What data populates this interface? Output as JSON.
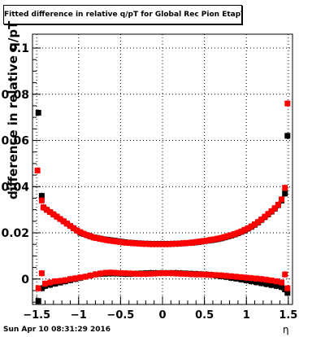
{
  "chart_data": {
    "type": "scatter",
    "title": "Fitted difference in relative q/pT for Global Rec Pion EtapT",
    "xlabel": "η",
    "ylabel": "difference in relative q/pT",
    "footer": "Sun Apr 10 08:31:29 2016",
    "xlim": [
      -1.55,
      1.55
    ],
    "ylim": [
      -0.011,
      0.106
    ],
    "x_ticks": [
      -1.5,
      -1,
      -0.5,
      0,
      0.5,
      1,
      1.5
    ],
    "x_tick_labels": [
      "−1.5",
      "−1",
      "−0.5",
      "0",
      "0.5",
      "1",
      "1.5"
    ],
    "y_ticks": [
      0,
      0.02,
      0.04,
      0.06,
      0.08,
      0.1
    ],
    "y_tick_labels": [
      "0",
      "0.02",
      "0.04",
      "0.06",
      "0.08",
      "0.1"
    ],
    "grid": true,
    "series": [
      {
        "color": "#000000",
        "values": [
          [
            -1.48,
            0.072
          ],
          [
            -1.44,
            0.036
          ],
          [
            -1.42,
            0.031
          ],
          [
            -1.38,
            0.03
          ],
          [
            -1.34,
            0.029
          ],
          [
            -1.3,
            0.028
          ],
          [
            -1.26,
            0.027
          ],
          [
            -1.22,
            0.026
          ],
          [
            -1.18,
            0.025
          ],
          [
            -1.14,
            0.024
          ],
          [
            -1.1,
            0.023
          ],
          [
            -1.06,
            0.022
          ],
          [
            -1.02,
            0.021
          ],
          [
            -0.98,
            0.02
          ],
          [
            -0.94,
            0.0195
          ],
          [
            -0.9,
            0.019
          ],
          [
            -0.86,
            0.0185
          ],
          [
            -0.82,
            0.018
          ],
          [
            -0.78,
            0.0178
          ],
          [
            -0.74,
            0.0175
          ],
          [
            -0.7,
            0.0172
          ],
          [
            -0.66,
            0.017
          ],
          [
            -0.62,
            0.0168
          ],
          [
            -0.58,
            0.0166
          ],
          [
            -0.54,
            0.0164
          ],
          [
            -0.5,
            0.0162
          ],
          [
            -0.46,
            0.016
          ],
          [
            -0.42,
            0.0158
          ],
          [
            -0.38,
            0.0157
          ],
          [
            -0.34,
            0.0156
          ],
          [
            -0.3,
            0.0155
          ],
          [
            -0.26,
            0.0154
          ],
          [
            -0.22,
            0.0153
          ],
          [
            -0.18,
            0.0153
          ],
          [
            -0.14,
            0.0152
          ],
          [
            -0.1,
            0.0152
          ],
          [
            -0.06,
            0.0152
          ],
          [
            -0.02,
            0.0152
          ],
          [
            0.02,
            0.0152
          ],
          [
            0.06,
            0.0152
          ],
          [
            0.1,
            0.0152
          ],
          [
            0.14,
            0.0153
          ],
          [
            0.18,
            0.0153
          ],
          [
            0.22,
            0.0154
          ],
          [
            0.26,
            0.0155
          ],
          [
            0.3,
            0.0156
          ],
          [
            0.34,
            0.0157
          ],
          [
            0.38,
            0.0158
          ],
          [
            0.42,
            0.016
          ],
          [
            0.46,
            0.0162
          ],
          [
            0.5,
            0.0164
          ],
          [
            0.54,
            0.0166
          ],
          [
            0.58,
            0.0168
          ],
          [
            0.62,
            0.017
          ],
          [
            0.66,
            0.0173
          ],
          [
            0.7,
            0.0176
          ],
          [
            0.74,
            0.018
          ],
          [
            0.78,
            0.0184
          ],
          [
            0.82,
            0.0188
          ],
          [
            0.86,
            0.0193
          ],
          [
            0.9,
            0.0198
          ],
          [
            0.94,
            0.0204
          ],
          [
            0.98,
            0.021
          ],
          [
            1.02,
            0.0218
          ],
          [
            1.06,
            0.0226
          ],
          [
            1.1,
            0.0235
          ],
          [
            1.14,
            0.0245
          ],
          [
            1.18,
            0.0256
          ],
          [
            1.22,
            0.0268
          ],
          [
            1.26,
            0.028
          ],
          [
            1.3,
            0.0292
          ],
          [
            1.34,
            0.0305
          ],
          [
            1.38,
            0.032
          ],
          [
            1.42,
            0.034
          ],
          [
            1.46,
            0.037
          ],
          [
            1.49,
            0.062
          ],
          [
            -1.48,
            -0.0095
          ],
          [
            -1.44,
            -0.004
          ],
          [
            -1.4,
            -0.003
          ],
          [
            -1.34,
            -0.0025
          ],
          [
            -1.28,
            -0.002
          ],
          [
            -1.22,
            -0.0015
          ],
          [
            -1.16,
            -0.001
          ],
          [
            -1.1,
            -0.0005
          ],
          [
            -1.04,
            0.0
          ],
          [
            -0.98,
            0.0005
          ],
          [
            -0.92,
            0.001
          ],
          [
            -0.86,
            0.0015
          ],
          [
            -0.8,
            0.002
          ],
          [
            -0.74,
            0.0022
          ],
          [
            -0.68,
            0.0023
          ],
          [
            -0.62,
            0.0024
          ],
          [
            -0.56,
            0.0024
          ],
          [
            -0.5,
            0.0023
          ],
          [
            -0.44,
            0.0022
          ],
          [
            -0.38,
            0.0022
          ],
          [
            -0.32,
            0.0023
          ],
          [
            -0.26,
            0.0024
          ],
          [
            -0.2,
            0.0025
          ],
          [
            -0.14,
            0.0026
          ],
          [
            -0.08,
            0.0026
          ],
          [
            -0.02,
            0.0026
          ],
          [
            0.04,
            0.0026
          ],
          [
            0.1,
            0.0026
          ],
          [
            0.16,
            0.0026
          ],
          [
            0.22,
            0.0025
          ],
          [
            0.28,
            0.0024
          ],
          [
            0.34,
            0.0023
          ],
          [
            0.4,
            0.0022
          ],
          [
            0.46,
            0.0021
          ],
          [
            0.52,
            0.002
          ],
          [
            0.58,
            0.0018
          ],
          [
            0.64,
            0.0015
          ],
          [
            0.7,
            0.0012
          ],
          [
            0.76,
            0.0009
          ],
          [
            0.82,
            0.0005
          ],
          [
            0.88,
            0.0002
          ],
          [
            0.94,
            -0.0002
          ],
          [
            1.0,
            -0.0006
          ],
          [
            1.06,
            -0.001
          ],
          [
            1.12,
            -0.0014
          ],
          [
            1.18,
            -0.0018
          ],
          [
            1.24,
            -0.0022
          ],
          [
            1.3,
            -0.0026
          ],
          [
            1.36,
            -0.003
          ],
          [
            1.42,
            -0.0035
          ],
          [
            1.46,
            -0.0045
          ],
          [
            1.49,
            -0.006
          ]
        ]
      },
      {
        "color": "#ff0000",
        "values": [
          [
            -1.49,
            0.047
          ],
          [
            -1.44,
            0.034
          ],
          [
            -1.42,
            0.031
          ],
          [
            -1.38,
            0.03
          ],
          [
            -1.34,
            0.029
          ],
          [
            -1.3,
            0.028
          ],
          [
            -1.26,
            0.027
          ],
          [
            -1.22,
            0.026
          ],
          [
            -1.18,
            0.025
          ],
          [
            -1.14,
            0.024
          ],
          [
            -1.1,
            0.023
          ],
          [
            -1.06,
            0.022
          ],
          [
            -1.02,
            0.021
          ],
          [
            -0.98,
            0.0203
          ],
          [
            -0.94,
            0.0196
          ],
          [
            -0.9,
            0.019
          ],
          [
            -0.86,
            0.0185
          ],
          [
            -0.82,
            0.018
          ],
          [
            -0.78,
            0.0177
          ],
          [
            -0.74,
            0.0174
          ],
          [
            -0.7,
            0.0171
          ],
          [
            -0.66,
            0.0168
          ],
          [
            -0.62,
            0.0166
          ],
          [
            -0.58,
            0.0164
          ],
          [
            -0.54,
            0.0162
          ],
          [
            -0.5,
            0.016
          ],
          [
            -0.46,
            0.0158
          ],
          [
            -0.42,
            0.0157
          ],
          [
            -0.38,
            0.0156
          ],
          [
            -0.34,
            0.0155
          ],
          [
            -0.3,
            0.0154
          ],
          [
            -0.26,
            0.0153
          ],
          [
            -0.22,
            0.0152
          ],
          [
            -0.18,
            0.0152
          ],
          [
            -0.14,
            0.0151
          ],
          [
            -0.1,
            0.0151
          ],
          [
            -0.06,
            0.0151
          ],
          [
            -0.02,
            0.0151
          ],
          [
            0.02,
            0.0151
          ],
          [
            0.06,
            0.0151
          ],
          [
            0.1,
            0.0152
          ],
          [
            0.14,
            0.0152
          ],
          [
            0.18,
            0.0153
          ],
          [
            0.22,
            0.0154
          ],
          [
            0.26,
            0.0155
          ],
          [
            0.3,
            0.0156
          ],
          [
            0.34,
            0.0157
          ],
          [
            0.38,
            0.0159
          ],
          [
            0.42,
            0.0161
          ],
          [
            0.46,
            0.0163
          ],
          [
            0.5,
            0.0165
          ],
          [
            0.54,
            0.0167
          ],
          [
            0.58,
            0.017
          ],
          [
            0.62,
            0.0172
          ],
          [
            0.66,
            0.0175
          ],
          [
            0.7,
            0.0178
          ],
          [
            0.74,
            0.0182
          ],
          [
            0.78,
            0.0186
          ],
          [
            0.82,
            0.019
          ],
          [
            0.86,
            0.0195
          ],
          [
            0.9,
            0.02
          ],
          [
            0.94,
            0.0206
          ],
          [
            0.98,
            0.0213
          ],
          [
            1.02,
            0.022
          ],
          [
            1.06,
            0.0228
          ],
          [
            1.1,
            0.0237
          ],
          [
            1.14,
            0.0247
          ],
          [
            1.18,
            0.0258
          ],
          [
            1.22,
            0.027
          ],
          [
            1.26,
            0.0282
          ],
          [
            1.3,
            0.0294
          ],
          [
            1.34,
            0.0307
          ],
          [
            1.38,
            0.0322
          ],
          [
            1.42,
            0.0345
          ],
          [
            1.46,
            0.0395
          ],
          [
            1.49,
            0.076
          ],
          [
            -1.48,
            -0.004
          ],
          [
            -1.44,
            0.0025
          ],
          [
            -1.4,
            -0.002
          ],
          [
            -1.34,
            -0.0015
          ],
          [
            -1.28,
            -0.001
          ],
          [
            -1.22,
            -0.0008
          ],
          [
            -1.16,
            -0.0005
          ],
          [
            -1.1,
            0.0
          ],
          [
            -1.04,
            0.0003
          ],
          [
            -0.98,
            0.0007
          ],
          [
            -0.92,
            0.001
          ],
          [
            -0.86,
            0.0015
          ],
          [
            -0.8,
            0.002
          ],
          [
            -0.74,
            0.0024
          ],
          [
            -0.68,
            0.0027
          ],
          [
            -0.62,
            0.0028
          ],
          [
            -0.56,
            0.0027
          ],
          [
            -0.5,
            0.0026
          ],
          [
            -0.44,
            0.0025
          ],
          [
            -0.38,
            0.0024
          ],
          [
            -0.32,
            0.0023
          ],
          [
            -0.26,
            0.0022
          ],
          [
            -0.2,
            0.0022
          ],
          [
            -0.14,
            0.0023
          ],
          [
            -0.08,
            0.0024
          ],
          [
            -0.02,
            0.0025
          ],
          [
            0.04,
            0.0025
          ],
          [
            0.1,
            0.0025
          ],
          [
            0.16,
            0.0024
          ],
          [
            0.22,
            0.0023
          ],
          [
            0.28,
            0.0022
          ],
          [
            0.34,
            0.0021
          ],
          [
            0.4,
            0.002
          ],
          [
            0.46,
            0.002
          ],
          [
            0.52,
            0.0019
          ],
          [
            0.58,
            0.0018
          ],
          [
            0.64,
            0.0017
          ],
          [
            0.7,
            0.0016
          ],
          [
            0.76,
            0.0014
          ],
          [
            0.82,
            0.0012
          ],
          [
            0.88,
            0.001
          ],
          [
            0.94,
            0.0008
          ],
          [
            1.0,
            0.0006
          ],
          [
            1.06,
            0.0004
          ],
          [
            1.12,
            0.0002
          ],
          [
            1.18,
            0.0
          ],
          [
            1.24,
            -0.0003
          ],
          [
            1.3,
            -0.0006
          ],
          [
            1.36,
            -0.001
          ],
          [
            1.42,
            -0.0015
          ],
          [
            1.46,
            0.002
          ],
          [
            1.49,
            -0.004
          ]
        ]
      }
    ]
  }
}
